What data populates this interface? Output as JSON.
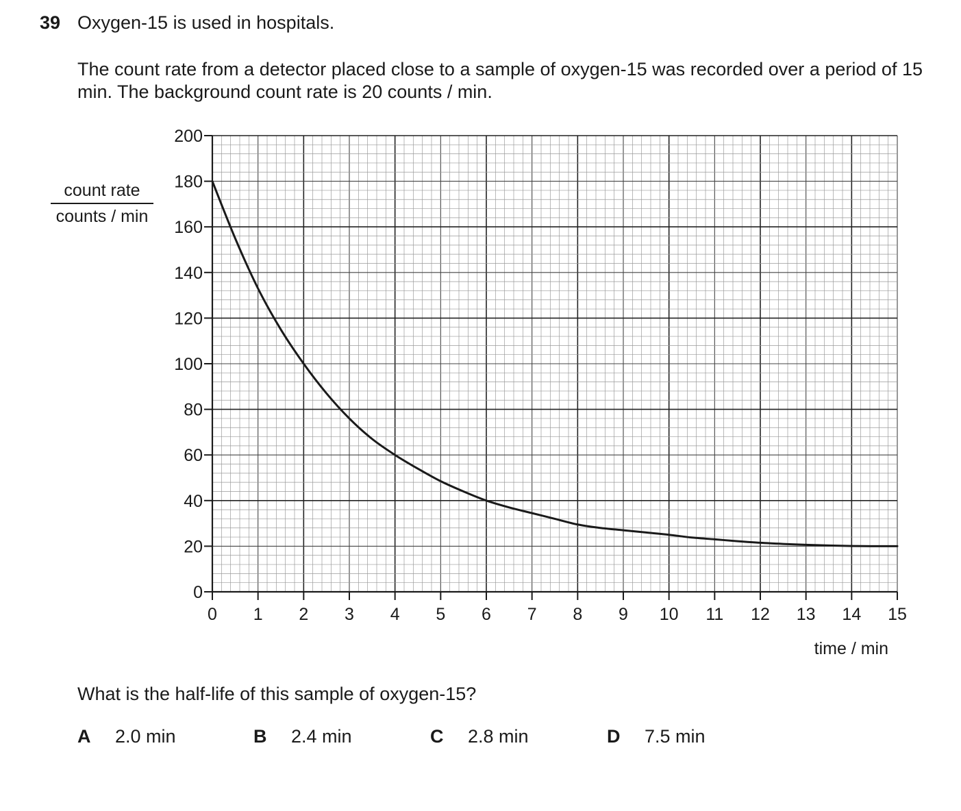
{
  "question": {
    "number": "39",
    "title": "Oxygen-15 is used in hospitals.",
    "intro": "The count rate from a detector placed close to a sample of oxygen-15 was recorded over a period of 15 min. The background count rate is 20 counts / min.",
    "prompt": "What is the half-life of this sample of oxygen-15?",
    "options": [
      {
        "letter": "A",
        "text": "2.0 min"
      },
      {
        "letter": "B",
        "text": "2.4 min"
      },
      {
        "letter": "C",
        "text": "2.8 min"
      },
      {
        "letter": "D",
        "text": "7.5 min"
      }
    ]
  },
  "chart_data": {
    "type": "line",
    "title": "",
    "xlabel": "time / min",
    "ylabel_numerator": "count rate",
    "ylabel_denominator": "counts / min",
    "xlim": [
      0,
      15
    ],
    "ylim": [
      0,
      200
    ],
    "x_ticks": [
      0,
      1,
      2,
      3,
      4,
      5,
      6,
      7,
      8,
      9,
      10,
      11,
      12,
      13,
      14,
      15
    ],
    "y_ticks": [
      0,
      20,
      40,
      60,
      80,
      100,
      120,
      140,
      160,
      180,
      200
    ],
    "grid": "fine graph paper: major lines every 2 min and 40 counts/min, medium every 1 min and 20 counts/min, minor every 0.2 min and 4 counts/min",
    "series": [
      {
        "color": "#1a1a1a",
        "x": [
          0,
          0.5,
          1,
          1.5,
          2,
          2.5,
          3,
          3.5,
          4,
          4.5,
          5,
          5.5,
          6,
          6.5,
          7,
          7.5,
          8,
          8.5,
          9,
          9.5,
          10,
          10.5,
          11,
          11.5,
          12,
          12.5,
          13,
          13.5,
          14,
          14.5,
          15
        ],
        "y": [
          180,
          155,
          133,
          115,
          100,
          87,
          76,
          67,
          60,
          54,
          48.5,
          44,
          40,
          37,
          34.5,
          32,
          29.5,
          28,
          27,
          26,
          25,
          23.8,
          23,
          22.2,
          21.5,
          21,
          20.6,
          20.3,
          20.1,
          20,
          20
        ]
      }
    ]
  }
}
